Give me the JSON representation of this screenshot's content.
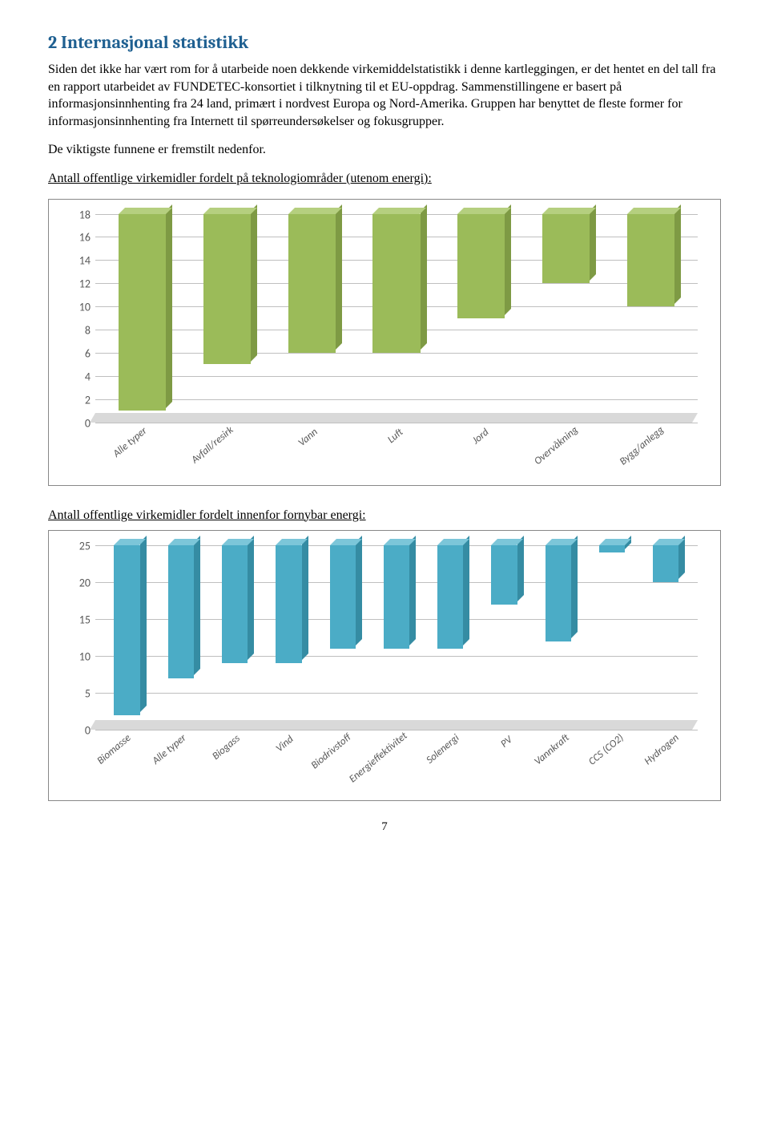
{
  "heading": "2 Internasjonal statistikk",
  "para1": "Siden det ikke har vært rom for å utarbeide noen dekkende virkemiddelstatistikk i denne kartleggingen, er det hentet en del tall fra en rapport utarbeidet av FUNDETEC-konsortiet i tilknytning til et EU-oppdrag. Sammenstillingene er basert på informasjonsinnhenting fra 24 land, primært i nordvest Europa og Nord-Amerika. Gruppen har benyttet de fleste former for informasjonsinnhenting fra Internett til spørreundersøkelser og fokusgrupper.",
  "para2": "De viktigste funnene er fremstilt nedenfor.",
  "caption1": "Antall offentlige virkemidler fordelt på teknologiområder (utenom energi):",
  "caption2": "Antall offentlige virkemidler fordelt innenfor fornybar energi:",
  "chart1": {
    "type": "bar",
    "categories": [
      "Alle typer",
      "Avfall/resirk",
      "Vann",
      "Luft",
      "Jord",
      "Overvåkning",
      "Bygg/anlegg"
    ],
    "values": [
      17,
      13,
      12,
      12,
      9,
      6,
      8
    ],
    "ylim": [
      0,
      18
    ],
    "ytick_step": 2,
    "bar_color_front": "#9bbb59",
    "bar_color_side": "#7e9a44",
    "bar_color_top": "#b5cf7f",
    "grid_color": "#bfbfbf",
    "axis_font_color": "#595959",
    "axis_fontsize": 14
  },
  "chart2": {
    "type": "bar",
    "categories": [
      "Biomasse",
      "Alle typer",
      "Biogass",
      "Vind",
      "Biodrivstoff",
      "Energieffektivitet",
      "Solenergi",
      "PV",
      "Vannkraft",
      "CCS (CO2)",
      "Hydrogen"
    ],
    "values": [
      23,
      18,
      16,
      16,
      14,
      14,
      14,
      8,
      13,
      1,
      5
    ],
    "ylim": [
      0,
      25
    ],
    "ytick_step": 5,
    "bar_color_front": "#4bacc6",
    "bar_color_side": "#358ca3",
    "bar_color_top": "#7cc6d9",
    "grid_color": "#bfbfbf",
    "axis_font_color": "#595959",
    "axis_fontsize": 14
  },
  "page_number": "7"
}
